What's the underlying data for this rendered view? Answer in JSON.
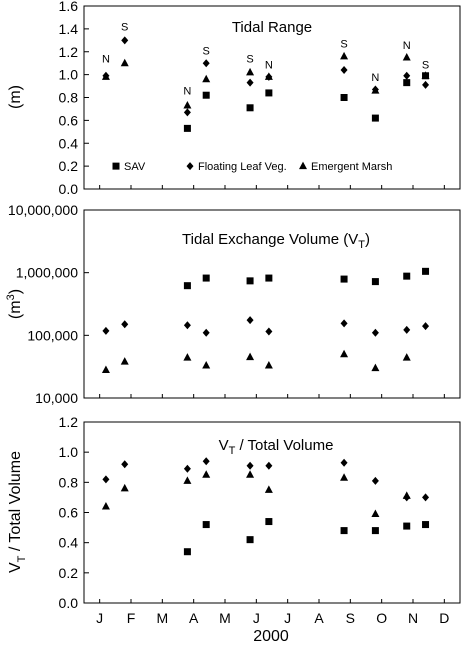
{
  "figure": {
    "x_label": "2000",
    "months": [
      "J",
      "F",
      "M",
      "A",
      "M",
      "J",
      "J",
      "A",
      "S",
      "O",
      "N",
      "D"
    ]
  },
  "chart_data": [
    {
      "type": "scatter",
      "title": "Tidal Range",
      "ylabel": "(m)",
      "ylim": [
        0,
        1.6
      ],
      "yscale": "linear",
      "yticks": [
        "0.0",
        "0.2",
        "0.4",
        "0.6",
        "0.8",
        "1.0",
        "1.2",
        "1.4",
        "1.6"
      ],
      "x_unit": "month index (1 = Jan, 12 = Dec)",
      "legend": {
        "position": "bottom",
        "entries": [
          "SAV",
          "Floating Leaf Veg.",
          "Emergent Marsh"
        ]
      },
      "series": [
        {
          "name": "SAV",
          "marker": "square",
          "points": [
            [
              3.8,
              0.53
            ],
            [
              4.4,
              0.82
            ],
            [
              5.8,
              0.71
            ],
            [
              6.4,
              0.84
            ],
            [
              8.8,
              0.8
            ],
            [
              9.8,
              0.62
            ],
            [
              10.8,
              0.93
            ],
            [
              11.4,
              0.99
            ]
          ]
        },
        {
          "name": "Floating Leaf Veg.",
          "marker": "diamond",
          "points": [
            [
              1.2,
              0.99
            ],
            [
              1.8,
              1.3
            ],
            [
              3.8,
              0.67
            ],
            [
              4.4,
              1.1
            ],
            [
              5.8,
              0.93
            ],
            [
              6.4,
              0.98
            ],
            [
              8.8,
              1.04
            ],
            [
              9.8,
              0.87
            ],
            [
              10.8,
              0.99
            ],
            [
              11.4,
              0.91
            ]
          ]
        },
        {
          "name": "Emergent Marsh",
          "marker": "triangle",
          "points": [
            [
              1.2,
              0.98
            ],
            [
              1.8,
              1.1
            ],
            [
              3.8,
              0.73
            ],
            [
              4.4,
              0.96
            ],
            [
              5.8,
              1.02
            ],
            [
              6.4,
              0.98
            ],
            [
              8.8,
              1.16
            ],
            [
              9.8,
              0.86
            ],
            [
              10.8,
              1.15
            ],
            [
              11.4,
              0.99
            ]
          ]
        }
      ],
      "annotations": [
        {
          "text": "N",
          "x": 1.2,
          "y": 1.14
        },
        {
          "text": "S",
          "x": 1.8,
          "y": 1.42
        },
        {
          "text": "N",
          "x": 3.8,
          "y": 0.86
        },
        {
          "text": "S",
          "x": 4.4,
          "y": 1.21
        },
        {
          "text": "S",
          "x": 5.8,
          "y": 1.14
        },
        {
          "text": "N",
          "x": 6.4,
          "y": 1.09
        },
        {
          "text": "S",
          "x": 8.8,
          "y": 1.27
        },
        {
          "text": "N",
          "x": 9.8,
          "y": 0.98
        },
        {
          "text": "N",
          "x": 10.8,
          "y": 1.26
        },
        {
          "text": "S",
          "x": 11.4,
          "y": 1.09
        }
      ]
    },
    {
      "type": "scatter",
      "title": "Tidal Exchange Volume (V",
      "title_subscript": "T",
      "title_suffix": ")",
      "ylabel": "(m",
      "ylabel_superscript": "3",
      "ylabel_suffix": ")",
      "ylim": [
        10000,
        10000000
      ],
      "yscale": "log",
      "yticks": [
        "10,000",
        "100,000",
        "1,000,000",
        "10,000,000"
      ],
      "x_unit": "month index (1 = Jan, 12 = Dec)",
      "series": [
        {
          "name": "SAV",
          "marker": "square",
          "points": [
            [
              3.8,
              620000
            ],
            [
              4.4,
              820000
            ],
            [
              5.8,
              740000
            ],
            [
              6.4,
              820000
            ],
            [
              8.8,
              790000
            ],
            [
              9.8,
              720000
            ],
            [
              10.8,
              880000
            ],
            [
              11.4,
              1050000
            ]
          ]
        },
        {
          "name": "Floating Leaf Veg.",
          "marker": "diamond",
          "points": [
            [
              1.2,
              118000
            ],
            [
              1.8,
              150000
            ],
            [
              3.8,
              145000
            ],
            [
              4.4,
              110000
            ],
            [
              5.8,
              175000
            ],
            [
              6.4,
              115000
            ],
            [
              8.8,
              155000
            ],
            [
              9.8,
              110000
            ],
            [
              10.8,
              122000
            ],
            [
              11.4,
              140000
            ]
          ]
        },
        {
          "name": "Emergent Marsh",
          "marker": "triangle",
          "points": [
            [
              1.2,
              28000
            ],
            [
              1.8,
              38000
            ],
            [
              3.8,
              44000
            ],
            [
              4.4,
              33000
            ],
            [
              5.8,
              45000
            ],
            [
              6.4,
              33000
            ],
            [
              8.8,
              50000
            ],
            [
              9.8,
              30000
            ],
            [
              10.8,
              44000
            ]
          ]
        }
      ]
    },
    {
      "type": "scatter",
      "title": "V",
      "title_subscript": "T",
      "title_suffix": " / Total Volume",
      "ylabel": "V",
      "ylabel_subscript": "T",
      "ylabel_suffix": " / Total Volume",
      "ylim": [
        0,
        1.2
      ],
      "yscale": "linear",
      "yticks": [
        "0.0",
        "0.2",
        "0.4",
        "0.6",
        "0.8",
        "1.0",
        "1.2"
      ],
      "x_unit": "month index (1 = Jan, 12 = Dec)",
      "series": [
        {
          "name": "SAV",
          "marker": "square",
          "points": [
            [
              3.8,
              0.34
            ],
            [
              4.4,
              0.52
            ],
            [
              5.8,
              0.42
            ],
            [
              6.4,
              0.54
            ],
            [
              8.8,
              0.48
            ],
            [
              9.8,
              0.48
            ],
            [
              10.8,
              0.51
            ],
            [
              11.4,
              0.52
            ]
          ]
        },
        {
          "name": "Floating Leaf Veg.",
          "marker": "diamond",
          "points": [
            [
              1.2,
              0.82
            ],
            [
              1.8,
              0.92
            ],
            [
              3.8,
              0.89
            ],
            [
              4.4,
              0.94
            ],
            [
              5.8,
              0.91
            ],
            [
              6.4,
              0.91
            ],
            [
              8.8,
              0.93
            ],
            [
              9.8,
              0.81
            ],
            [
              10.8,
              0.7
            ],
            [
              11.4,
              0.7
            ]
          ]
        },
        {
          "name": "Emergent Marsh",
          "marker": "triangle",
          "points": [
            [
              1.2,
              0.64
            ],
            [
              1.8,
              0.76
            ],
            [
              3.8,
              0.81
            ],
            [
              4.4,
              0.85
            ],
            [
              5.8,
              0.85
            ],
            [
              6.4,
              0.75
            ],
            [
              8.8,
              0.83
            ],
            [
              9.8,
              0.59
            ],
            [
              10.8,
              0.71
            ]
          ]
        }
      ]
    }
  ]
}
